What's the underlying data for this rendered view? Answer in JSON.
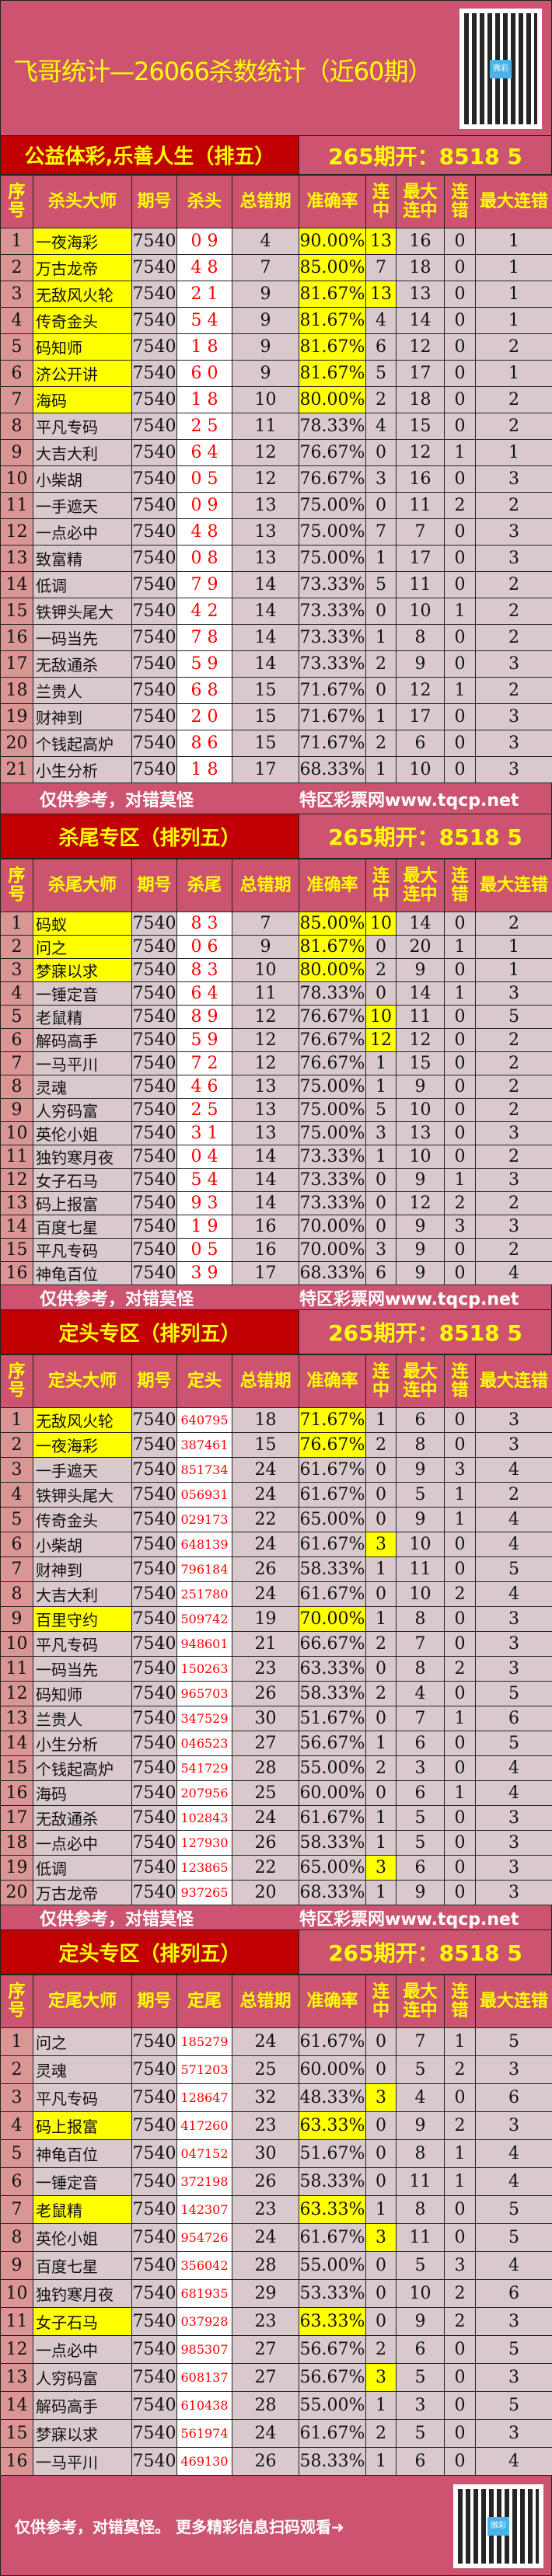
{
  "title": "飞哥统计—26066杀数统计（近60期）",
  "colors": {
    "pink": "#cd5470",
    "red": "#c00000",
    "yellow": "#ffff00",
    "cell": "#d9c9cc",
    "index": "#da9694",
    "kill": "#ff0000"
  },
  "qr_icon": "qr-code-icon",
  "qr_badge": "微彩",
  "footer_left": "仅供参考，对错莫怪",
  "footer_right": "特区彩票网www.tqcp.net",
  "bottom_text": "仅供参考，对错莫怪。 更多精彩信息扫码观看➜",
  "sections": [
    {
      "title": "公益体彩,乐善人生（排五）",
      "result": "265期开：8518 5",
      "headers": [
        "序号",
        "杀头大师",
        "期号",
        "杀头",
        "总错期",
        "准确率",
        "连中",
        "最大连中",
        "连错",
        "最大连错"
      ],
      "rows": [
        [
          "1",
          "一夜海彩",
          "7540",
          "0 9",
          "4",
          "90.00%",
          "13",
          "16",
          "0",
          "1",
          1,
          1
        ],
        [
          "2",
          "万古龙帝",
          "7540",
          "4 8",
          "7",
          "85.00%",
          "7",
          "18",
          "0",
          "1",
          1,
          0
        ],
        [
          "3",
          "无敌风火轮",
          "7540",
          "2 1",
          "9",
          "81.67%",
          "13",
          "13",
          "0",
          "1",
          1,
          1
        ],
        [
          "4",
          "传奇金头",
          "7540",
          "5 4",
          "9",
          "81.67%",
          "4",
          "14",
          "0",
          "1",
          1,
          0
        ],
        [
          "5",
          "码知师",
          "7540",
          "1 8",
          "9",
          "81.67%",
          "6",
          "12",
          "0",
          "2",
          1,
          0
        ],
        [
          "6",
          "济公开讲",
          "7540",
          "6 0",
          "9",
          "81.67%",
          "5",
          "17",
          "0",
          "1",
          1,
          0
        ],
        [
          "7",
          "海码",
          "7540",
          "1 8",
          "10",
          "80.00%",
          "2",
          "18",
          "0",
          "2",
          1,
          0
        ],
        [
          "8",
          "平凡专码",
          "7540",
          "2 5",
          "11",
          "78.33%",
          "4",
          "15",
          "0",
          "2",
          0,
          0
        ],
        [
          "9",
          "大吉大利",
          "7540",
          "6 4",
          "12",
          "76.67%",
          "0",
          "12",
          "1",
          "1",
          0,
          0
        ],
        [
          "10",
          "小柴胡",
          "7540",
          "0 5",
          "12",
          "76.67%",
          "3",
          "16",
          "0",
          "3",
          0,
          0
        ],
        [
          "11",
          "一手遮天",
          "7540",
          "0 9",
          "13",
          "75.00%",
          "0",
          "11",
          "2",
          "2",
          0,
          0
        ],
        [
          "12",
          "一点必中",
          "7540",
          "4 8",
          "13",
          "75.00%",
          "7",
          "7",
          "0",
          "3",
          0,
          0
        ],
        [
          "13",
          "致富精",
          "7540",
          "0 8",
          "13",
          "75.00%",
          "1",
          "17",
          "0",
          "3",
          0,
          0
        ],
        [
          "14",
          "低调",
          "7540",
          "7 9",
          "14",
          "73.33%",
          "5",
          "11",
          "0",
          "2",
          0,
          0
        ],
        [
          "15",
          "铁钾头尾大",
          "7540",
          "4 2",
          "14",
          "73.33%",
          "0",
          "10",
          "1",
          "2",
          0,
          0
        ],
        [
          "16",
          "一码当先",
          "7540",
          "7 8",
          "14",
          "73.33%",
          "1",
          "8",
          "0",
          "2",
          0,
          0
        ],
        [
          "17",
          "无敌通杀",
          "7540",
          "5 9",
          "14",
          "73.33%",
          "2",
          "9",
          "0",
          "3",
          0,
          0
        ],
        [
          "18",
          "兰贵人",
          "7540",
          "6 8",
          "15",
          "71.67%",
          "0",
          "12",
          "1",
          "2",
          0,
          0
        ],
        [
          "19",
          "财神到",
          "7540",
          "2 0",
          "15",
          "71.67%",
          "1",
          "17",
          "0",
          "3",
          0,
          0
        ],
        [
          "20",
          "个钱起高炉",
          "7540",
          "8 6",
          "15",
          "71.67%",
          "2",
          "6",
          "0",
          "3",
          0,
          0
        ],
        [
          "21",
          "小生分析",
          "7540",
          "1 8",
          "17",
          "68.33%",
          "1",
          "10",
          "0",
          "3",
          0,
          0
        ]
      ]
    },
    {
      "title": "杀尾专区（排列五）",
      "result": "265期开：8518 5",
      "headers": [
        "序号",
        "杀尾大师",
        "期号",
        "杀尾",
        "总错期",
        "准确率",
        "连中",
        "最大连中",
        "连错",
        "最大连错"
      ],
      "rows": [
        [
          "1",
          "码蚁",
          "7540",
          "8 3",
          "7",
          "85.00%",
          "10",
          "14",
          "0",
          "2",
          1,
          1
        ],
        [
          "2",
          "问之",
          "7540",
          "0 6",
          "9",
          "81.67%",
          "0",
          "20",
          "1",
          "1",
          1,
          0
        ],
        [
          "3",
          "梦寐以求",
          "7540",
          "8 3",
          "10",
          "80.00%",
          "2",
          "9",
          "0",
          "1",
          1,
          0
        ],
        [
          "4",
          "一锤定音",
          "7540",
          "6 4",
          "11",
          "78.33%",
          "0",
          "14",
          "1",
          "3",
          0,
          0
        ],
        [
          "5",
          "老鼠精",
          "7540",
          "8 9",
          "12",
          "76.67%",
          "10",
          "11",
          "0",
          "5",
          0,
          1
        ],
        [
          "6",
          "解码高手",
          "7540",
          "5 9",
          "12",
          "76.67%",
          "12",
          "12",
          "0",
          "2",
          0,
          1
        ],
        [
          "7",
          "一马平川",
          "7540",
          "7 2",
          "12",
          "76.67%",
          "1",
          "15",
          "0",
          "2",
          0,
          0
        ],
        [
          "8",
          "灵魂",
          "7540",
          "4 6",
          "13",
          "75.00%",
          "1",
          "9",
          "0",
          "2",
          0,
          0
        ],
        [
          "9",
          "人穷码富",
          "7540",
          "2 5",
          "13",
          "75.00%",
          "5",
          "10",
          "0",
          "2",
          0,
          0
        ],
        [
          "10",
          "英伦小姐",
          "7540",
          "3 1",
          "13",
          "75.00%",
          "3",
          "13",
          "0",
          "3",
          0,
          0
        ],
        [
          "11",
          "独钓寒月夜",
          "7540",
          "0 4",
          "14",
          "73.33%",
          "1",
          "10",
          "0",
          "2",
          0,
          0
        ],
        [
          "12",
          "女子石马",
          "7540",
          "5 4",
          "14",
          "73.33%",
          "0",
          "9",
          "1",
          "3",
          0,
          0
        ],
        [
          "13",
          "码上报富",
          "7540",
          "9 3",
          "14",
          "73.33%",
          "0",
          "12",
          "2",
          "2",
          0,
          0
        ],
        [
          "14",
          "百度七星",
          "7540",
          "1 9",
          "16",
          "70.00%",
          "0",
          "9",
          "3",
          "3",
          0,
          0
        ],
        [
          "15",
          "平凡专码",
          "7540",
          "0 5",
          "16",
          "70.00%",
          "3",
          "9",
          "0",
          "2",
          0,
          0
        ],
        [
          "16",
          "神龟百位",
          "7540",
          "3 9",
          "17",
          "68.33%",
          "6",
          "9",
          "0",
          "4",
          0,
          0
        ]
      ]
    },
    {
      "title": "定头专区（排列五）",
      "result": "265期开：8518 5",
      "headers": [
        "序号",
        "定头大师",
        "期号",
        "定头",
        "总错期",
        "准确率",
        "连中",
        "最大连中",
        "连错",
        "最大连错"
      ],
      "rows": [
        [
          "1",
          "无敌风火轮",
          "7540",
          "640795",
          "18",
          "71.67%",
          "1",
          "6",
          "0",
          "3",
          1,
          0
        ],
        [
          "2",
          "一夜海彩",
          "7540",
          "387461",
          "15",
          "76.67%",
          "2",
          "8",
          "0",
          "3",
          1,
          0
        ],
        [
          "3",
          "一手遮天",
          "7540",
          "851734",
          "24",
          "61.67%",
          "0",
          "9",
          "3",
          "4",
          0,
          0
        ],
        [
          "4",
          "铁钾头尾大",
          "7540",
          "056931",
          "24",
          "61.67%",
          "0",
          "5",
          "1",
          "2",
          0,
          0
        ],
        [
          "5",
          "传奇金头",
          "7540",
          "029173",
          "22",
          "65.00%",
          "0",
          "9",
          "1",
          "4",
          0,
          0
        ],
        [
          "6",
          "小柴胡",
          "7540",
          "648139",
          "24",
          "61.67%",
          "3",
          "10",
          "0",
          "4",
          0,
          1
        ],
        [
          "7",
          "财神到",
          "7540",
          "796184",
          "26",
          "58.33%",
          "1",
          "11",
          "0",
          "5",
          0,
          0
        ],
        [
          "8",
          "大吉大利",
          "7540",
          "251780",
          "24",
          "61.67%",
          "0",
          "10",
          "2",
          "4",
          0,
          0
        ],
        [
          "9",
          "百里守约",
          "7540",
          "509742",
          "19",
          "70.00%",
          "1",
          "8",
          "0",
          "3",
          1,
          0
        ],
        [
          "10",
          "平凡专码",
          "7540",
          "948601",
          "21",
          "66.67%",
          "2",
          "7",
          "0",
          "3",
          0,
          0
        ],
        [
          "11",
          "一码当先",
          "7540",
          "150263",
          "23",
          "63.33%",
          "0",
          "8",
          "2",
          "3",
          0,
          0
        ],
        [
          "12",
          "码知师",
          "7540",
          "965703",
          "26",
          "58.33%",
          "2",
          "4",
          "0",
          "5",
          0,
          0
        ],
        [
          "13",
          "兰贵人",
          "7540",
          "347529",
          "30",
          "51.67%",
          "0",
          "7",
          "1",
          "6",
          0,
          0
        ],
        [
          "14",
          "小生分析",
          "7540",
          "046523",
          "27",
          "56.67%",
          "1",
          "6",
          "0",
          "5",
          0,
          0
        ],
        [
          "15",
          "个钱起高炉",
          "7540",
          "541729",
          "28",
          "55.00%",
          "2",
          "3",
          "0",
          "4",
          0,
          0
        ],
        [
          "16",
          "海码",
          "7540",
          "207956",
          "25",
          "60.00%",
          "0",
          "6",
          "1",
          "4",
          0,
          0
        ],
        [
          "17",
          "无敌通杀",
          "7540",
          "102843",
          "24",
          "61.67%",
          "1",
          "5",
          "0",
          "3",
          0,
          0
        ],
        [
          "18",
          "一点必中",
          "7540",
          "127930",
          "26",
          "58.33%",
          "1",
          "5",
          "0",
          "3",
          0,
          0
        ],
        [
          "19",
          "低调",
          "7540",
          "123865",
          "22",
          "65.00%",
          "3",
          "6",
          "0",
          "3",
          0,
          1
        ],
        [
          "20",
          "万古龙帝",
          "7540",
          "937265",
          "20",
          "68.33%",
          "1",
          "9",
          "0",
          "3",
          0,
          0
        ]
      ]
    },
    {
      "title": "定头专区（排列五）",
      "result": "265期开：8518 5",
      "headers": [
        "序号",
        "定尾大师",
        "期号",
        "定尾",
        "总错期",
        "准确率",
        "连中",
        "最大连中",
        "连错",
        "最大连错"
      ],
      "rows": [
        [
          "1",
          "问之",
          "7540",
          "185279",
          "24",
          "61.67%",
          "0",
          "7",
          "1",
          "5",
          0,
          0
        ],
        [
          "2",
          "灵魂",
          "7540",
          "571203",
          "25",
          "60.00%",
          "0",
          "5",
          "2",
          "3",
          0,
          0
        ],
        [
          "3",
          "平凡专码",
          "7540",
          "128647",
          "32",
          "48.33%",
          "3",
          "4",
          "0",
          "6",
          0,
          1
        ],
        [
          "4",
          "码上报富",
          "7540",
          "417260",
          "23",
          "63.33%",
          "0",
          "9",
          "2",
          "3",
          1,
          0
        ],
        [
          "5",
          "神龟百位",
          "7540",
          "047152",
          "30",
          "51.67%",
          "0",
          "8",
          "1",
          "4",
          0,
          0
        ],
        [
          "6",
          "一锤定音",
          "7540",
          "372198",
          "26",
          "58.33%",
          "0",
          "11",
          "1",
          "4",
          0,
          0
        ],
        [
          "7",
          "老鼠精",
          "7540",
          "142307",
          "23",
          "63.33%",
          "1",
          "8",
          "0",
          "5",
          1,
          0
        ],
        [
          "8",
          "英伦小姐",
          "7540",
          "954726",
          "24",
          "61.67%",
          "3",
          "11",
          "0",
          "5",
          0,
          1
        ],
        [
          "9",
          "百度七星",
          "7540",
          "356042",
          "28",
          "55.00%",
          "0",
          "5",
          "3",
          "4",
          0,
          0
        ],
        [
          "10",
          "独钓寒月夜",
          "7540",
          "681935",
          "29",
          "53.33%",
          "0",
          "10",
          "2",
          "6",
          0,
          0
        ],
        [
          "11",
          "女子石马",
          "7540",
          "037928",
          "23",
          "63.33%",
          "0",
          "9",
          "2",
          "3",
          1,
          0
        ],
        [
          "12",
          "一点必中",
          "7540",
          "985307",
          "27",
          "56.67%",
          "2",
          "6",
          "0",
          "5",
          0,
          0
        ],
        [
          "13",
          "人穷码富",
          "7540",
          "608137",
          "27",
          "56.67%",
          "3",
          "5",
          "0",
          "3",
          0,
          1
        ],
        [
          "14",
          "解码高手",
          "7540",
          "610438",
          "28",
          "55.00%",
          "1",
          "3",
          "0",
          "5",
          0,
          0
        ],
        [
          "15",
          "梦寐以求",
          "7540",
          "561974",
          "24",
          "61.67%",
          "2",
          "5",
          "0",
          "3",
          0,
          0
        ],
        [
          "16",
          "一马平川",
          "7540",
          "469130",
          "26",
          "58.33%",
          "1",
          "6",
          "0",
          "4",
          0,
          0
        ]
      ]
    }
  ]
}
